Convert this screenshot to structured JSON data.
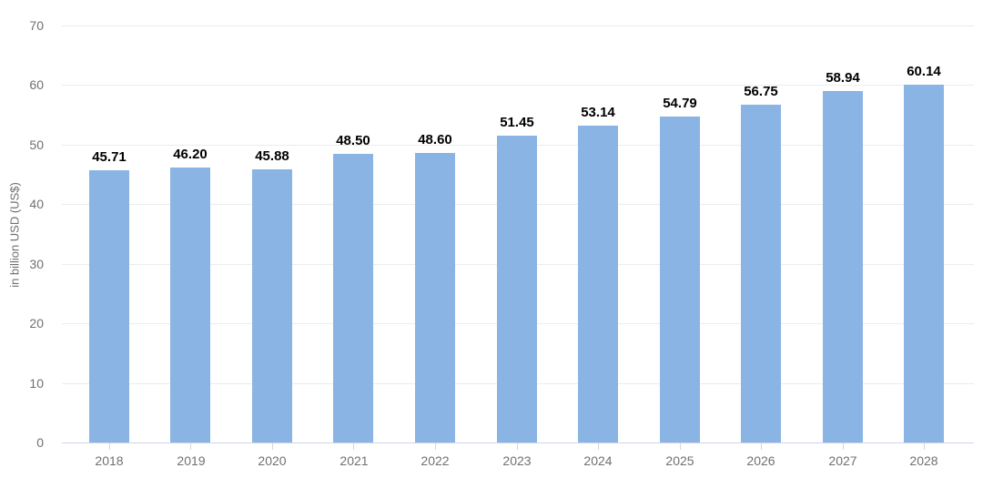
{
  "chart_data": {
    "type": "bar",
    "title": "",
    "xlabel": "",
    "ylabel": "in billion USD (US$)",
    "categories": [
      "2018",
      "2019",
      "2020",
      "2021",
      "2022",
      "2023",
      "2024",
      "2025",
      "2026",
      "2027",
      "2028"
    ],
    "values": [
      45.71,
      46.2,
      45.88,
      48.5,
      48.6,
      51.45,
      53.14,
      54.79,
      56.75,
      58.94,
      60.14
    ],
    "value_labels": [
      "45.71",
      "46.20",
      "45.88",
      "48.50",
      "48.60",
      "51.45",
      "53.14",
      "54.79",
      "56.75",
      "58.94",
      "60.14"
    ],
    "ylim": [
      0,
      70
    ],
    "yticks": [
      0,
      10,
      20,
      30,
      40,
      50,
      60,
      70
    ],
    "grid": true,
    "legend": false,
    "bar_color": "#8ab4e3",
    "value_label_color": "#000000",
    "axis_text_color": "#707070",
    "gridline_color": "#ececec",
    "axis_line_color": "#ccd6eb"
  }
}
